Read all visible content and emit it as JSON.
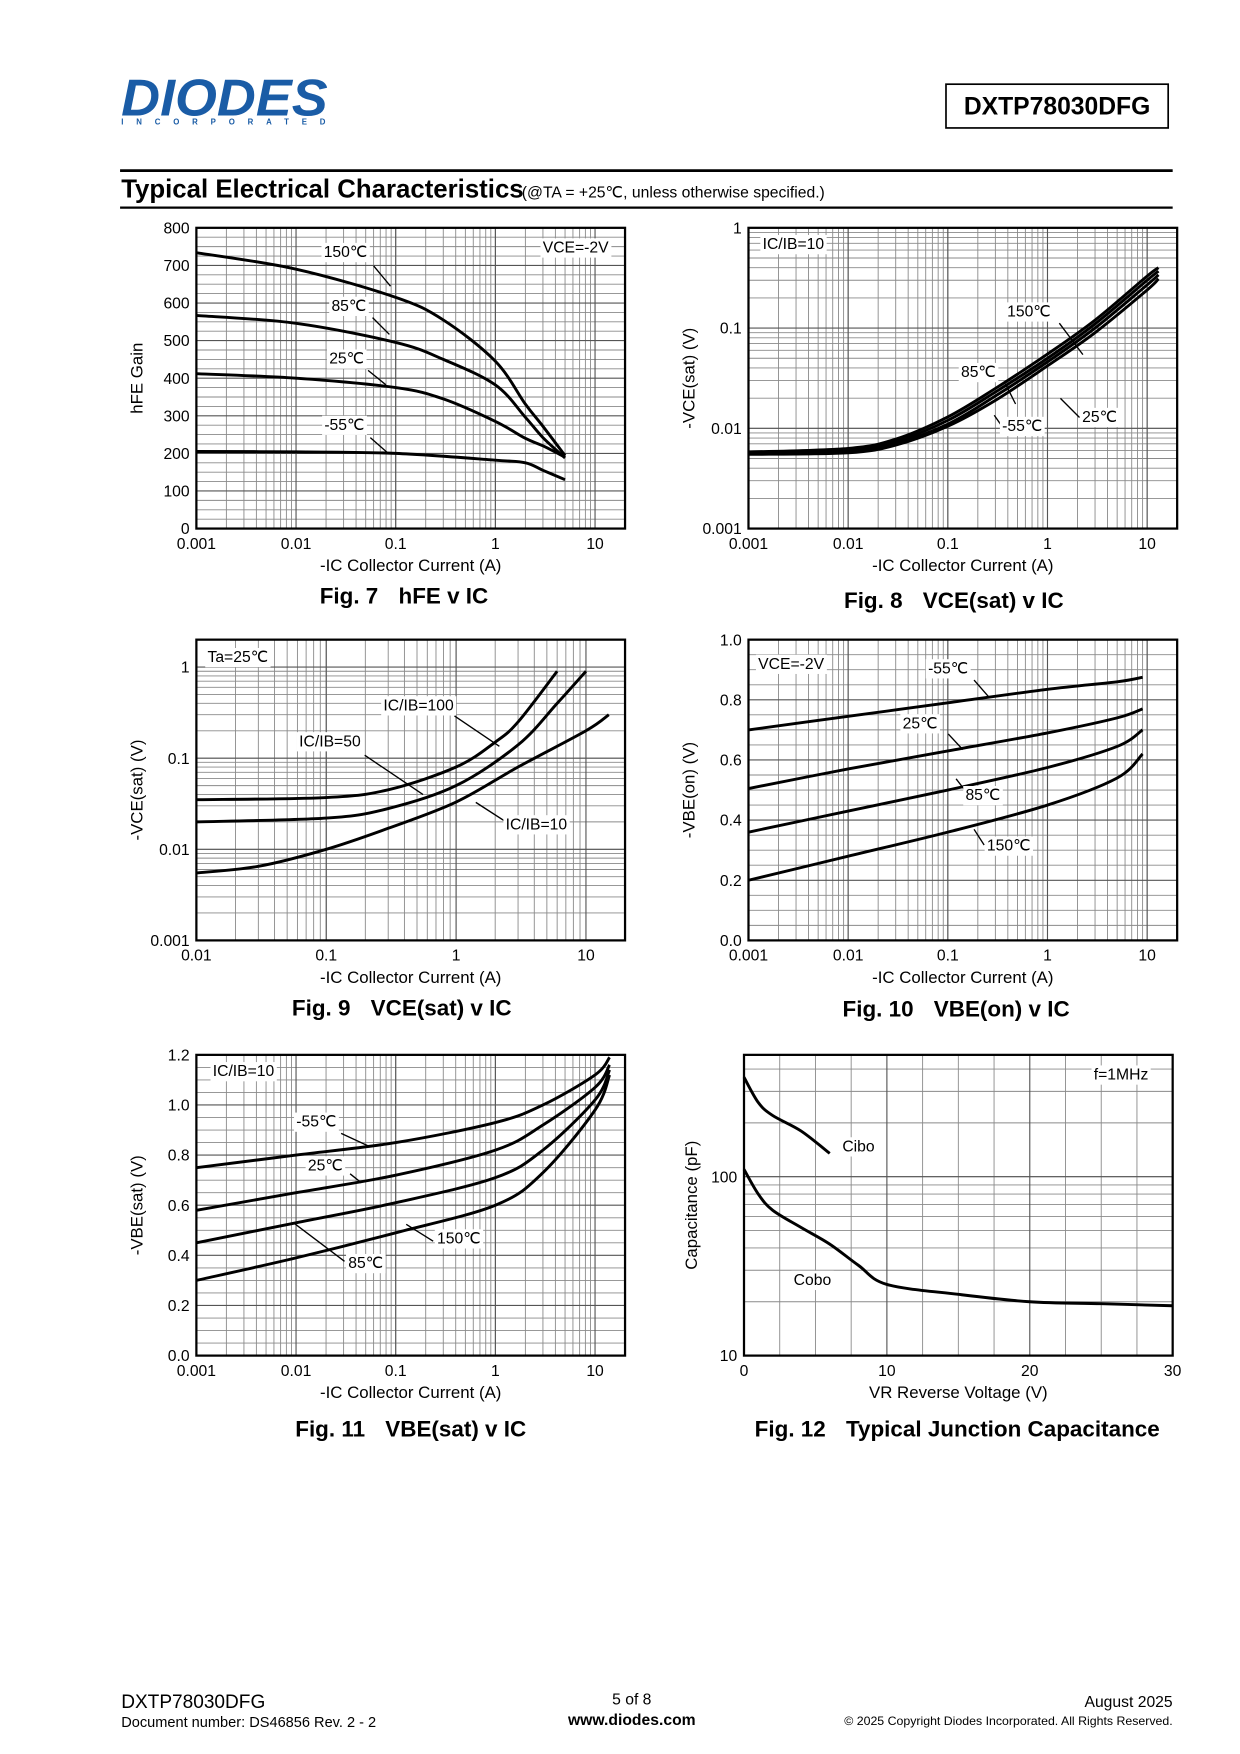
{
  "header": {
    "logo": "DIODES",
    "logo_sub": "INCORPORATED",
    "part_number": "DXTP78030DFG"
  },
  "section": {
    "title": "Typical Electrical Characteristics",
    "subtitle": "(@TA = +25℃, unless otherwise specified.)"
  },
  "chart_data": [
    {
      "type": "line",
      "caption_number": "Fig. 7",
      "caption_title": "hFE v IC",
      "xlabel": "-IC  Collector Current (A)",
      "ylabel": "hFE Gain",
      "annotation": "VCE=-2V",
      "xscale": "log",
      "yscale": "linear",
      "xlim": [
        0.001,
        20
      ],
      "ylim": [
        0,
        800
      ],
      "xticks": [
        0.001,
        0.01,
        0.1,
        1,
        10
      ],
      "yticks": [
        0,
        100,
        200,
        300,
        400,
        500,
        600,
        700,
        800
      ],
      "grid": true,
      "series": [
        {
          "name": "150℃",
          "color": "#000000",
          "x": [
            0.001,
            0.01,
            0.1,
            0.3,
            1,
            2,
            3,
            5
          ],
          "values": [
            734,
            690,
            615,
            555,
            445,
            331,
            272,
            194
          ]
        },
        {
          "name": "85℃",
          "color": "#000000",
          "x": [
            0.001,
            0.01,
            0.1,
            0.3,
            1,
            2,
            3,
            5
          ],
          "values": [
            567,
            546,
            495,
            450,
            382,
            296,
            242,
            188
          ]
        },
        {
          "name": "25℃",
          "color": "#000000",
          "x": [
            0.001,
            0.01,
            0.1,
            0.3,
            1,
            2,
            3,
            5
          ],
          "values": [
            412,
            400,
            375,
            345,
            285,
            240,
            220,
            190
          ]
        },
        {
          "name": "-55℃",
          "color": "#000000",
          "x": [
            0.001,
            0.01,
            0.1,
            1,
            2,
            3,
            5
          ],
          "values": [
            205,
            204,
            200,
            182,
            175,
            155,
            130
          ]
        }
      ]
    },
    {
      "type": "line",
      "caption_number": "Fig. 8",
      "caption_title": "VCE(sat) v IC",
      "xlabel": "-IC  Collector Current (A)",
      "ylabel": "-VCE(sat) (V)",
      "annotation": "IC/IB=10",
      "xscale": "log",
      "yscale": "log",
      "xlim": [
        0.001,
        20
      ],
      "ylim": [
        0.001,
        1
      ],
      "xticks": [
        0.001,
        0.01,
        0.1,
        1,
        10
      ],
      "yticks": [
        0.001,
        0.01,
        0.1,
        1
      ],
      "grid": true,
      "series": [
        {
          "name": "150℃",
          "color": "#000000",
          "x": [
            0.001,
            0.01,
            0.03,
            0.1,
            0.3,
            1,
            3,
            10,
            13
          ],
          "values": [
            0.0058,
            0.0063,
            0.0078,
            0.013,
            0.025,
            0.055,
            0.12,
            0.33,
            0.4
          ]
        },
        {
          "name": "85℃",
          "color": "#000000",
          "x": [
            0.001,
            0.01,
            0.03,
            0.1,
            0.3,
            1,
            3,
            10,
            13
          ],
          "values": [
            0.0057,
            0.0061,
            0.0074,
            0.012,
            0.023,
            0.05,
            0.11,
            0.3,
            0.37
          ]
        },
        {
          "name": "-55℃",
          "color": "#000000",
          "x": [
            0.001,
            0.01,
            0.03,
            0.1,
            0.3,
            1,
            3,
            10,
            13
          ],
          "values": [
            0.0055,
            0.0057,
            0.0068,
            0.0105,
            0.019,
            0.042,
            0.09,
            0.24,
            0.31
          ]
        },
        {
          "name": "25℃",
          "color": "#000000",
          "x": [
            0.001,
            0.01,
            0.03,
            0.1,
            0.3,
            1,
            3,
            10,
            13
          ],
          "values": [
            0.0056,
            0.0059,
            0.0071,
            0.011,
            0.021,
            0.046,
            0.1,
            0.27,
            0.34
          ]
        }
      ]
    },
    {
      "type": "line",
      "caption_number": "Fig. 9",
      "caption_title": "VCE(sat) v IC",
      "xlabel": "-IC  Collector Current (A)",
      "ylabel": "-VCE(sat) (V)",
      "annotation": "Ta=25℃",
      "xscale": "log",
      "yscale": "log",
      "xlim": [
        0.01,
        20
      ],
      "ylim": [
        0.001,
        2
      ],
      "xticks": [
        0.01,
        0.1,
        1,
        10
      ],
      "yticks": [
        0.001,
        0.01,
        0.1,
        1
      ],
      "grid": true,
      "series": [
        {
          "name": "IC/IB=100",
          "color": "#000000",
          "x": [
            0.01,
            0.1,
            0.3,
            1,
            2,
            3,
            6
          ],
          "values": [
            0.035,
            0.037,
            0.045,
            0.08,
            0.15,
            0.25,
            0.9
          ]
        },
        {
          "name": "IC/IB=50",
          "color": "#000000",
          "x": [
            0.01,
            0.1,
            0.3,
            1,
            3,
            6,
            10
          ],
          "values": [
            0.02,
            0.022,
            0.028,
            0.05,
            0.14,
            0.4,
            0.9
          ]
        },
        {
          "name": "IC/IB=10",
          "color": "#000000",
          "x": [
            0.01,
            0.03,
            0.1,
            0.3,
            1,
            3,
            10,
            15
          ],
          "values": [
            0.0055,
            0.0065,
            0.01,
            0.017,
            0.033,
            0.08,
            0.2,
            0.3
          ]
        }
      ]
    },
    {
      "type": "line",
      "caption_number": "Fig. 10",
      "caption_title": "VBE(on) v IC",
      "xlabel": "-IC  Collector Current (A)",
      "ylabel": "-VBE(on) (V)",
      "annotation": "VCE=-2V",
      "xscale": "log",
      "yscale": "linear",
      "xlim": [
        0.001,
        20
      ],
      "ylim": [
        0,
        1
      ],
      "xticks": [
        0.001,
        0.01,
        0.1,
        1,
        10
      ],
      "yticks": [
        {
          "value": 0,
          "label": "0.0"
        },
        0.2,
        0.4,
        0.6,
        0.8,
        {
          "value": 1,
          "label": "1.0"
        }
      ],
      "grid": true,
      "series": [
        {
          "name": "-55℃",
          "color": "#000000",
          "x": [
            0.001,
            0.01,
            0.1,
            1,
            5,
            9
          ],
          "values": [
            0.7,
            0.745,
            0.79,
            0.835,
            0.86,
            0.875
          ]
        },
        {
          "name": "25℃",
          "color": "#000000",
          "x": [
            0.001,
            0.01,
            0.1,
            1,
            5,
            9
          ],
          "values": [
            0.505,
            0.57,
            0.63,
            0.69,
            0.74,
            0.77
          ]
        },
        {
          "name": "85℃",
          "color": "#000000",
          "x": [
            0.001,
            0.01,
            0.1,
            1,
            5,
            9
          ],
          "values": [
            0.36,
            0.43,
            0.5,
            0.575,
            0.645,
            0.7
          ]
        },
        {
          "name": "150℃",
          "color": "#000000",
          "x": [
            0.001,
            0.01,
            0.1,
            1,
            5,
            9
          ],
          "values": [
            0.2,
            0.28,
            0.36,
            0.45,
            0.54,
            0.62
          ]
        }
      ]
    },
    {
      "type": "line",
      "caption_number": "Fig. 11",
      "caption_title": "VBE(sat) v IC",
      "xlabel": "-IC  Collector Current (A)",
      "ylabel": "-VBE(sat) (V)",
      "annotation": "IC/IB=10",
      "xscale": "log",
      "yscale": "linear",
      "xlim": [
        0.001,
        20
      ],
      "ylim": [
        0,
        1.2
      ],
      "xticks": [
        0.001,
        0.01,
        0.1,
        1,
        10
      ],
      "yticks": [
        {
          "value": 0,
          "label": "0.0"
        },
        0.2,
        0.4,
        0.6,
        0.8,
        {
          "value": 1,
          "label": "1.0"
        },
        1.2
      ],
      "grid": true,
      "series": [
        {
          "name": "-55℃",
          "color": "#000000",
          "x": [
            0.001,
            0.01,
            0.1,
            1,
            3,
            10,
            14
          ],
          "values": [
            0.75,
            0.8,
            0.85,
            0.93,
            1.0,
            1.12,
            1.19
          ]
        },
        {
          "name": "25℃",
          "color": "#000000",
          "x": [
            0.001,
            0.01,
            0.1,
            1,
            3,
            10,
            14
          ],
          "values": [
            0.58,
            0.65,
            0.72,
            0.82,
            0.92,
            1.07,
            1.16
          ]
        },
        {
          "name": "85℃",
          "color": "#000000",
          "x": [
            0.001,
            0.01,
            0.1,
            1,
            3,
            10,
            14
          ],
          "values": [
            0.45,
            0.53,
            0.61,
            0.71,
            0.82,
            1.02,
            1.14
          ]
        },
        {
          "name": "150℃",
          "color": "#000000",
          "x": [
            0.001,
            0.01,
            0.1,
            1,
            3,
            10,
            14
          ],
          "values": [
            0.3,
            0.39,
            0.49,
            0.6,
            0.73,
            0.98,
            1.12
          ]
        }
      ]
    },
    {
      "type": "line",
      "caption_number": "Fig. 12",
      "caption_title": "Typical Junction Capacitance",
      "xlabel": "VR  Reverse Voltage (V)",
      "ylabel": "Capacitance (pF)",
      "annotation": "f=1MHz",
      "xscale": "linear",
      "yscale": "log",
      "xlim": [
        0,
        30
      ],
      "ylim": [
        10,
        480
      ],
      "xticks": [
        0,
        10,
        20,
        30
      ],
      "yticks": [
        10,
        100
      ],
      "grid": true,
      "series": [
        {
          "name": "Cibo",
          "color": "#000000",
          "x": [
            0,
            1,
            2,
            4,
            6
          ],
          "values": [
            360,
            260,
            220,
            180,
            135
          ]
        },
        {
          "name": "Cobo",
          "color": "#000000",
          "x": [
            0,
            1,
            2,
            4,
            6,
            8,
            10,
            15,
            20,
            25,
            30
          ],
          "values": [
            110,
            80,
            65,
            52,
            42,
            32,
            25,
            22,
            20,
            19.5,
            19
          ]
        }
      ]
    }
  ],
  "footer": {
    "part_number": "DXTP78030DFG",
    "document_number": "Document number: DS46856 Rev. 2 - 2",
    "page": "5 of 8",
    "website": "www.diodes.com",
    "date": "August 2025",
    "copyright": "© 2025 Copyright Diodes Incorporated. All Rights Reserved."
  }
}
